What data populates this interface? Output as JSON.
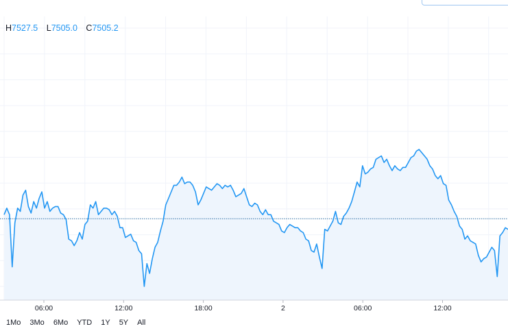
{
  "legend": {
    "high_label": "H",
    "high_value": "7527.5",
    "low_label": "L",
    "low_value": "7505.0",
    "close_label": "C",
    "close_value": "7505.2"
  },
  "range_buttons": [
    "1Mo",
    "3Mo",
    "6Mo",
    "YTD",
    "1Y",
    "5Y",
    "All"
  ],
  "colors": {
    "line": "#2196f3",
    "fill": "#eef5fd",
    "grid": "#f0f3fa",
    "reference": "#2d6fa3"
  },
  "chart_data": {
    "type": "area",
    "x_tick_labels": [
      "06:00",
      "12:00",
      "18:00",
      "2",
      "06:00",
      "12:00"
    ],
    "x_tick_index": [
      3,
      9,
      15,
      21,
      27,
      33
    ],
    "reference_value": 0.415,
    "ylim": [
      0,
      1
    ],
    "grid": true,
    "y_unit": "relative level (0 = bottom, 1 = top of plot)",
    "series": [
      {
        "values": [
          0.44,
          0.48,
          0.44,
          0.12,
          0.39,
          0.48,
          0.46,
          0.56,
          0.59,
          0.49,
          0.45,
          0.52,
          0.48,
          0.54,
          0.58,
          0.48,
          0.52,
          0.46,
          0.48,
          0.49,
          0.49,
          0.45,
          0.44,
          0.41,
          0.29,
          0.28,
          0.25,
          0.28,
          0.33,
          0.29,
          0.38,
          0.4,
          0.5,
          0.48,
          0.52,
          0.44,
          0.46,
          0.48,
          0.48,
          0.47,
          0.44,
          0.46,
          0.43,
          0.36,
          0.36,
          0.3,
          0.31,
          0.32,
          0.28,
          0.27,
          0.22,
          0.2,
          0.0,
          0.14,
          0.08,
          0.17,
          0.24,
          0.27,
          0.34,
          0.4,
          0.5,
          0.54,
          0.58,
          0.62,
          0.62,
          0.64,
          0.67,
          0.63,
          0.64,
          0.64,
          0.62,
          0.58,
          0.5,
          0.53,
          0.57,
          0.61,
          0.6,
          0.59,
          0.61,
          0.63,
          0.62,
          0.6,
          0.62,
          0.61,
          0.62,
          0.59,
          0.55,
          0.56,
          0.57,
          0.6,
          0.55,
          0.5,
          0.49,
          0.51,
          0.5,
          0.46,
          0.44,
          0.47,
          0.44,
          0.44,
          0.4,
          0.39,
          0.38,
          0.34,
          0.33,
          0.36,
          0.38,
          0.37,
          0.36,
          0.36,
          0.34,
          0.33,
          0.29,
          0.28,
          0.22,
          0.21,
          0.26,
          0.18,
          0.11,
          0.35,
          0.34,
          0.37,
          0.4,
          0.46,
          0.39,
          0.38,
          0.43,
          0.45,
          0.48,
          0.52,
          0.58,
          0.64,
          0.61,
          0.74,
          0.69,
          0.7,
          0.72,
          0.73,
          0.78,
          0.79,
          0.8,
          0.76,
          0.78,
          0.74,
          0.71,
          0.74,
          0.72,
          0.71,
          0.73,
          0.73,
          0.76,
          0.79,
          0.8,
          0.83,
          0.84,
          0.82,
          0.8,
          0.78,
          0.74,
          0.72,
          0.68,
          0.66,
          0.68,
          0.63,
          0.62,
          0.53,
          0.5,
          0.46,
          0.43,
          0.37,
          0.35,
          0.29,
          0.31,
          0.28,
          0.27,
          0.26,
          0.19,
          0.15,
          0.17,
          0.18,
          0.21,
          0.24,
          0.22,
          0.06,
          0.31,
          0.33,
          0.36,
          0.35
        ]
      }
    ]
  }
}
